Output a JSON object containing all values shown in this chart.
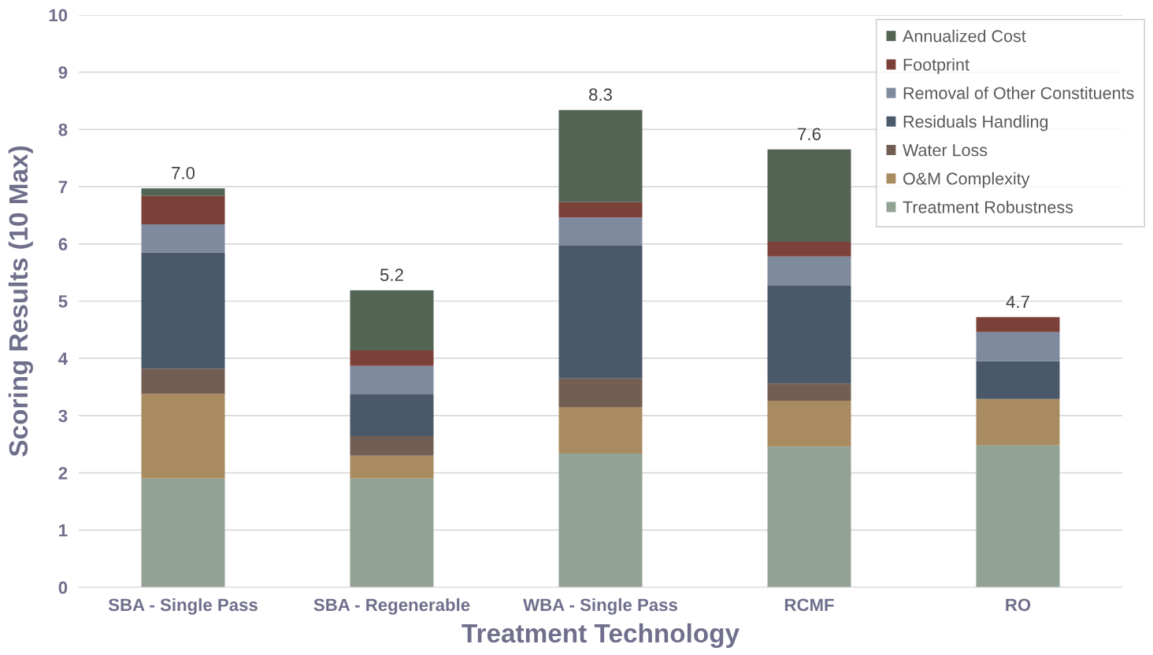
{
  "chart_data": {
    "type": "bar",
    "stacked": true,
    "xlabel": "Treatment Technology",
    "ylabel": "Scoring Results (10 Max)",
    "categories": [
      "SBA - Single Pass",
      "SBA - Regenerable",
      "WBA - Single Pass",
      "RCMF",
      "RO"
    ],
    "series": [
      {
        "name": "Treatment Robustness",
        "color": "#92a295",
        "values": [
          1.9,
          1.9,
          2.34,
          2.46,
          2.48
        ]
      },
      {
        "name": "O&M Complexity",
        "color": "#a98b62",
        "values": [
          1.48,
          0.4,
          0.81,
          0.8,
          0.81
        ]
      },
      {
        "name": "Water Loss",
        "color": "#725e52",
        "values": [
          0.44,
          0.34,
          0.5,
          0.3,
          0
        ]
      },
      {
        "name": "Residuals Handling",
        "color": "#4a596a",
        "values": [
          2.03,
          0.73,
          2.32,
          1.72,
          0.66
        ]
      },
      {
        "name": "Removal of Other Constituents",
        "color": "#7f8a9e",
        "values": [
          0.49,
          0.5,
          0.49,
          0.5,
          0.51
        ]
      },
      {
        "name": "Footprint",
        "color": "#7b4139",
        "values": [
          0.5,
          0.27,
          0.27,
          0.26,
          0.26
        ]
      },
      {
        "name": "Annualized Cost",
        "color": "#536354",
        "values": [
          0.13,
          1.05,
          1.61,
          1.61,
          0
        ]
      }
    ],
    "totals": [
      "7.0",
      "5.2",
      "8.3",
      "7.6",
      "4.7"
    ],
    "ylim": [
      0,
      10
    ],
    "yticks": [
      0,
      1,
      2,
      3,
      4,
      5,
      6,
      7,
      8,
      9,
      10
    ],
    "grid": "y",
    "legend": "top right"
  }
}
